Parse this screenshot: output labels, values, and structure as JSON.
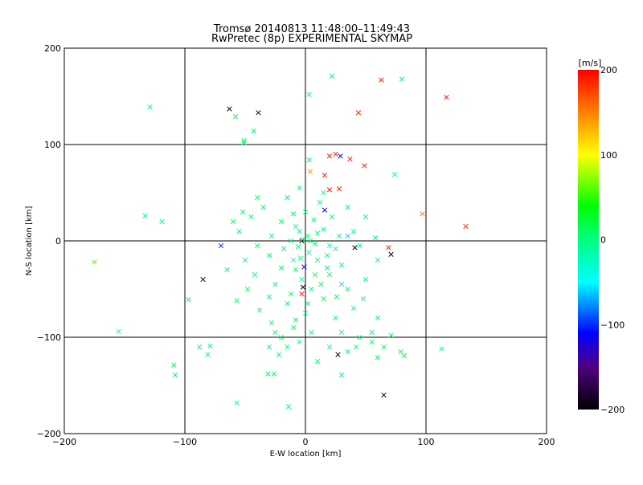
{
  "chart_data": {
    "type": "scatter",
    "title": "Tromsø 20140813 11:48:00–11:49:43",
    "subtitle": "RwPretec (8p) EXPERIMENTAL SKYMAP",
    "xlabel": "E-W location [km]",
    "ylabel": "N-S location [km]",
    "xlim": [
      -200,
      200
    ],
    "ylim": [
      -200,
      200
    ],
    "xticks": [
      -200,
      -100,
      0,
      100,
      200
    ],
    "yticks": [
      -200,
      -100,
      0,
      100,
      200
    ],
    "xtick_labels": [
      "−200",
      "−100",
      "0",
      "100",
      "200"
    ],
    "ytick_labels": [
      "−200",
      "−100",
      "0",
      "100",
      "200"
    ],
    "grid": [
      -100,
      0,
      100
    ],
    "colorbar": {
      "label": "[m/s]",
      "range": [
        -200,
        200
      ],
      "ticks": [
        200,
        100,
        0,
        -100,
        -200
      ],
      "tick_labels": [
        "200",
        "100",
        "0",
        "−100",
        "−200"
      ],
      "stops": [
        [
          -200,
          "#000000"
        ],
        [
          -150,
          "#500080"
        ],
        [
          -110,
          "#0000ff"
        ],
        [
          -50,
          "#00ffff"
        ],
        [
          0,
          "#00ff80"
        ],
        [
          40,
          "#00ff00"
        ],
        [
          100,
          "#ffff00"
        ],
        [
          150,
          "#ff8000"
        ],
        [
          200,
          "#ff0000"
        ]
      ]
    },
    "points_format": [
      "x_km",
      "y_km",
      "velocity_m_s"
    ],
    "points": [
      [
        -175,
        -22,
        60
      ],
      [
        -155,
        -94,
        -30
      ],
      [
        -133,
        26,
        -20
      ],
      [
        -119,
        20,
        5
      ],
      [
        -97,
        -61,
        10
      ],
      [
        -109,
        -129,
        10
      ],
      [
        -108,
        -139,
        10
      ],
      [
        -88,
        -110,
        10
      ],
      [
        -81,
        -118,
        5
      ],
      [
        -79,
        -109,
        5
      ],
      [
        -63,
        137,
        -200
      ],
      [
        -58,
        129,
        10
      ],
      [
        -51,
        104,
        10
      ],
      [
        -51,
        102,
        10
      ],
      [
        -39,
        133,
        -180
      ],
      [
        -43,
        114,
        5
      ],
      [
        3,
        152,
        5
      ],
      [
        22,
        171,
        5
      ],
      [
        63,
        167,
        190
      ],
      [
        117,
        149,
        190
      ],
      [
        44,
        133,
        190
      ],
      [
        80,
        168,
        10
      ],
      [
        20,
        88,
        190
      ],
      [
        25,
        90,
        190
      ],
      [
        29,
        88,
        -110
      ],
      [
        37,
        85,
        190
      ],
      [
        49,
        78,
        190
      ],
      [
        4,
        72,
        140
      ],
      [
        3,
        84,
        10
      ],
      [
        74,
        69,
        -20
      ],
      [
        16,
        68,
        190
      ],
      [
        20,
        53,
        190
      ],
      [
        28,
        54,
        190
      ],
      [
        16,
        32,
        -110
      ],
      [
        97,
        28,
        150
      ],
      [
        133,
        15,
        190
      ],
      [
        69,
        -7,
        190
      ],
      [
        71,
        -14,
        -190
      ],
      [
        41,
        -7,
        -200
      ],
      [
        -3,
        0,
        -200
      ],
      [
        -2,
        -48,
        -200
      ],
      [
        -3,
        -55,
        190
      ],
      [
        -1,
        -27,
        -120
      ],
      [
        27,
        -118,
        -200
      ],
      [
        65,
        -160,
        -200
      ],
      [
        30,
        -139,
        5
      ],
      [
        -14,
        -172,
        10
      ],
      [
        -57,
        -168,
        -20
      ],
      [
        -31,
        -138,
        10
      ],
      [
        -26,
        -138,
        10
      ],
      [
        113,
        -112,
        -20
      ],
      [
        79,
        -115,
        10
      ],
      [
        82,
        -119,
        10
      ],
      [
        60,
        -121,
        10
      ],
      [
        71,
        -98,
        10
      ],
      [
        58,
        3,
        10
      ],
      [
        -70,
        -5,
        -100
      ],
      [
        -85,
        -40,
        -180
      ],
      [
        -129,
        139,
        -20
      ],
      [
        -5,
        10,
        5
      ],
      [
        2,
        5,
        -5
      ],
      [
        8,
        -3,
        10
      ],
      [
        -12,
        0,
        0
      ],
      [
        15,
        12,
        5
      ],
      [
        -20,
        20,
        10
      ],
      [
        25,
        -8,
        -5
      ],
      [
        -30,
        -15,
        10
      ],
      [
        10,
        -20,
        0
      ],
      [
        -8,
        -30,
        5
      ],
      [
        20,
        -35,
        10
      ],
      [
        -25,
        -45,
        5
      ],
      [
        5,
        -50,
        0
      ],
      [
        30,
        -25,
        10
      ],
      [
        -40,
        -5,
        10
      ],
      [
        40,
        10,
        5
      ],
      [
        -45,
        25,
        10
      ],
      [
        0,
        30,
        -5
      ],
      [
        12,
        40,
        5
      ],
      [
        -15,
        45,
        10
      ],
      [
        22,
        25,
        0
      ],
      [
        -35,
        35,
        10
      ],
      [
        35,
        -50,
        5
      ],
      [
        15,
        -60,
        10
      ],
      [
        -15,
        -65,
        5
      ],
      [
        0,
        -75,
        0
      ],
      [
        25,
        -80,
        10
      ],
      [
        -10,
        -90,
        5
      ],
      [
        -20,
        -100,
        10
      ],
      [
        -15,
        -110,
        5
      ],
      [
        30,
        -95,
        10
      ],
      [
        45,
        -100,
        5
      ],
      [
        55,
        -105,
        10
      ],
      [
        40,
        -70,
        0
      ],
      [
        50,
        -40,
        5
      ],
      [
        60,
        -20,
        10
      ],
      [
        -50,
        -20,
        10
      ],
      [
        -55,
        10,
        5
      ],
      [
        -60,
        20,
        10
      ],
      [
        -48,
        -50,
        10
      ],
      [
        -38,
        -72,
        5
      ],
      [
        -28,
        -85,
        10
      ],
      [
        -5,
        -105,
        -5
      ],
      [
        5,
        -95,
        10
      ],
      [
        20,
        -110,
        5
      ],
      [
        35,
        -115,
        10
      ],
      [
        10,
        -125,
        5
      ],
      [
        -22,
        -118,
        10
      ],
      [
        -8,
        15,
        -10
      ],
      [
        3,
        -12,
        -15
      ],
      [
        18,
        -15,
        0
      ],
      [
        -18,
        -8,
        10
      ],
      [
        28,
        5,
        5
      ],
      [
        -28,
        5,
        10
      ],
      [
        7,
        22,
        10
      ],
      [
        -3,
        -40,
        -10
      ],
      [
        13,
        -45,
        5
      ],
      [
        -12,
        -55,
        10
      ],
      [
        48,
        -60,
        5
      ],
      [
        60,
        -80,
        10
      ],
      [
        -42,
        -35,
        5
      ],
      [
        -52,
        30,
        10
      ],
      [
        50,
        25,
        5
      ],
      [
        45,
        -5,
        10
      ],
      [
        -65,
        -30,
        10
      ],
      [
        -57,
        -62,
        10
      ],
      [
        55,
        -95,
        5
      ],
      [
        65,
        -110,
        10
      ],
      [
        42,
        -110,
        5
      ],
      [
        -30,
        -110,
        10
      ],
      [
        -25,
        -95,
        5
      ],
      [
        -8,
        -82,
        10
      ],
      [
        2,
        -65,
        -10
      ],
      [
        8,
        -35,
        10
      ],
      [
        -4,
        -18,
        0
      ],
      [
        -2,
        2,
        -5
      ],
      [
        4,
        0,
        10
      ],
      [
        -6,
        -6,
        5
      ],
      [
        10,
        8,
        0
      ],
      [
        -10,
        28,
        10
      ],
      [
        18,
        -28,
        5
      ],
      [
        -20,
        -28,
        10
      ],
      [
        26,
        -58,
        10
      ],
      [
        -30,
        -58,
        5
      ],
      [
        35,
        35,
        10
      ],
      [
        -40,
        45,
        10
      ],
      [
        15,
        50,
        5
      ],
      [
        -5,
        55,
        10
      ],
      [
        30,
        -45,
        -60
      ],
      [
        35,
        5,
        -60
      ],
      [
        20,
        -5,
        -40
      ],
      [
        -10,
        -20,
        -30
      ]
    ]
  }
}
